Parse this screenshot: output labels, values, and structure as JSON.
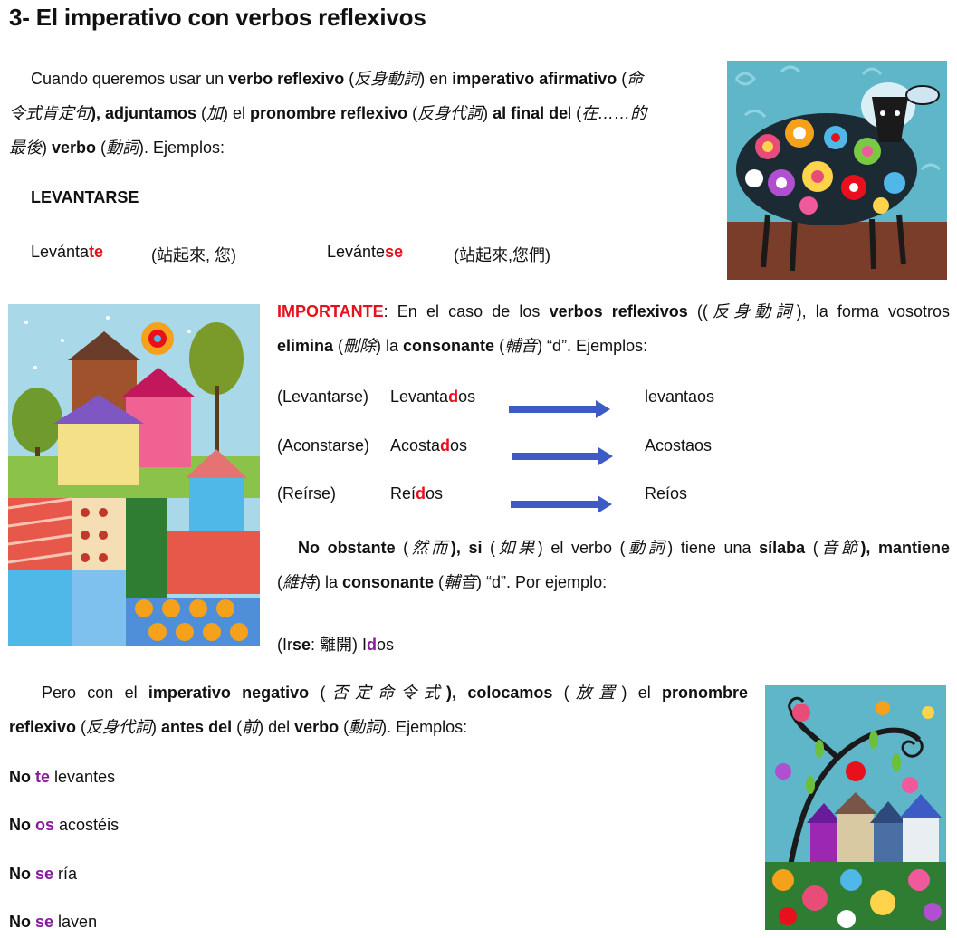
{
  "title": "3- El imperativo con verbos reflexivos",
  "para1": {
    "t1": "Cuando queremos usar un ",
    "t2": "verbo reflexivo",
    "t3": " (",
    "t4": "反身動詞",
    "t5": ") en ",
    "t6": "imperativo afirmativo",
    "t7": " (",
    "t8": "命",
    "t9": "令式肯定句",
    "t10": "), ",
    "t11": "adjuntamos",
    "t12": " (",
    "t13": "加",
    "t14": ") el ",
    "t15": "pronombre reflexivo",
    "t16": " (",
    "t17": "反身代詞",
    "t18": ") ",
    "t19": "al final de",
    "t20": "l (",
    "t21": "在……的",
    "t22": "最後",
    "t23": ") ",
    "t24": "verbo",
    "t25": " (",
    "t26": "動詞",
    "t27": "). Ejemplos:"
  },
  "levantarse_heading": "LEVANTARSE",
  "ex1": {
    "base": "Levánta",
    "ending": "te",
    "gloss": "(站起來, 您)"
  },
  "ex2": {
    "base": "Levánte",
    "ending": "se",
    "gloss": "(站起來,您們)"
  },
  "importante": {
    "label": "IMPORTANTE",
    "t1": ": En el caso de los ",
    "t2": "verbos reflexivos",
    "t3": " ((",
    "t4": "反身動詞",
    "t5": "), la forma vosotros",
    "t6": "elimina",
    "t7": " (",
    "t8": "刪除",
    "t9": ") la ",
    "t10": "consonante",
    "t11": " (",
    "t12": "輔音",
    "t13": ") “d”. Ejemplos:"
  },
  "rows": [
    {
      "inf": "(Levantarse)",
      "pre": "Levanta",
      "d": "d",
      "post": "os",
      "result": "levantaos"
    },
    {
      "inf": "(Aconstarse)",
      "pre": "Acosta",
      "d": "d",
      "post": "os",
      "result": "Acostaos"
    },
    {
      "inf": "(Reírse)",
      "pre": "Reí",
      "d": "d",
      "post": "os",
      "result": "Reíos"
    }
  ],
  "obstante": {
    "t1": "No obstante",
    "t2": " (",
    "t3": "然而",
    "t4": "), ",
    "t5": "si",
    "t6": " (",
    "t7": "如果",
    "t8": ") el verbo (",
    "t9": "動詞",
    "t10": ") tiene una ",
    "t11": "sílaba",
    "t12": " (",
    "t13": "音節",
    "t14": "), ",
    "t15": "mantiene",
    "t16": "(",
    "t17": "維持",
    "t18": ") la ",
    "t19": "consonante",
    "t20": " (",
    "t21": "輔音",
    "t22": ") “d”. Por ejemplo:"
  },
  "irse": {
    "pre": "(Ir",
    "se": "se",
    "colon": ": 離開) I",
    "d": "d",
    "post": "os"
  },
  "pero": {
    "t1": "Pero con el ",
    "t2": "imperativo negativo",
    "t3": " (",
    "t4": "否定命令式",
    "t5": "), ",
    "t6": "colocamos",
    "t7": " (",
    "t8": "放置",
    "t9": ") el ",
    "t10": "pronombre",
    "t11": "reflexivo",
    "t12": " (",
    "t13": "反身代詞",
    "t14": ") ",
    "t15": "antes del",
    "t16": " (",
    "t17": "前",
    "t18": ") del ",
    "t19": "verbo",
    "t20": " (",
    "t21": "動詞",
    "t22": "). Ejemplos:"
  },
  "negatives": [
    {
      "no": "No",
      "pron": "te",
      "verb": " levantes"
    },
    {
      "no": "No",
      "pron": "os",
      "verb": " acostéis"
    },
    {
      "no": "No",
      "pron": "se",
      "verb": " ría"
    },
    {
      "no": "No",
      "pron": "se",
      "verb": " laven"
    }
  ],
  "colors": {
    "red": "#e8101c",
    "purple": "#8a1a9c",
    "arrow": "#3d5bc4"
  }
}
